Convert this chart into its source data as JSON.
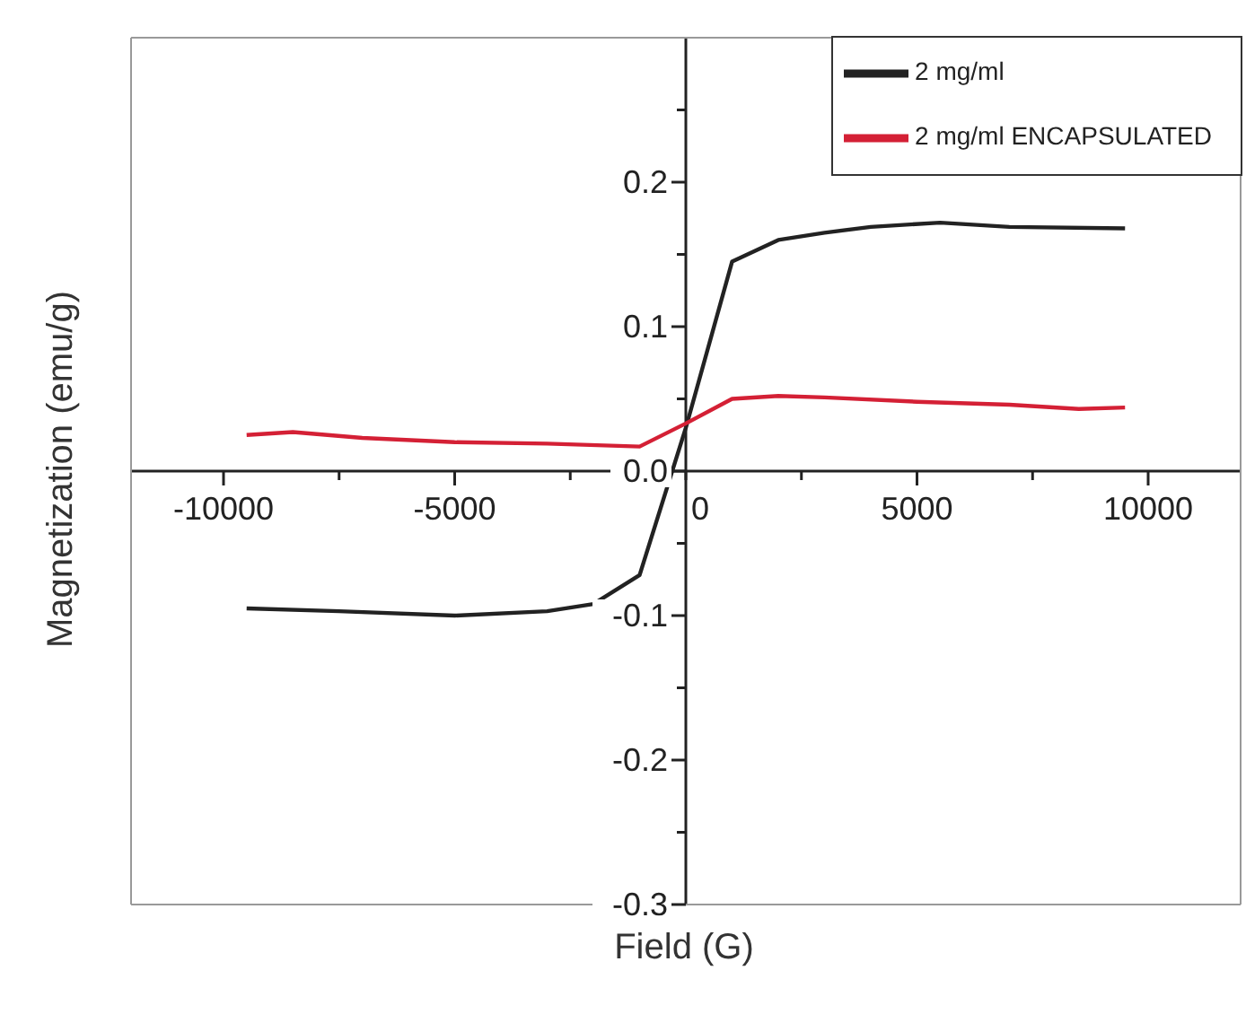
{
  "chart_data": {
    "type": "line",
    "xlabel": "Field (G)",
    "ylabel": "Magnetization (emu/g)",
    "xlim": [
      -12000,
      12000
    ],
    "ylim": [
      -0.3,
      0.3
    ],
    "xticks": [
      -10000,
      {
        "value": -7500,
        "label": null
      },
      -5000,
      {
        "value": -2500,
        "label": null
      },
      0,
      {
        "value": 2500,
        "label": null
      },
      5000,
      {
        "value": 7500,
        "label": null
      },
      10000
    ],
    "yticks": [
      -0.3,
      {
        "value": -0.25,
        "label": null
      },
      -0.2,
      {
        "value": -0.15,
        "label": null
      },
      -0.1,
      {
        "value": -0.05,
        "label": null
      },
      {
        "value": 0,
        "label": "0.0"
      },
      {
        "value": 0.05,
        "label": null
      },
      0.1,
      {
        "value": 0.15,
        "label": null
      },
      0.2,
      {
        "value": 0.25,
        "label": null
      }
    ],
    "legend": "top right",
    "grid": false,
    "marker": "none",
    "line_style": "solid",
    "series": [
      {
        "name": "2 mg/ml",
        "color": "#222222",
        "x": [
          -9500,
          -7500,
          -5000,
          -3000,
          -2000,
          -1000,
          0,
          1000,
          2000,
          3000,
          4000,
          5500,
          7000,
          9500
        ],
        "values": [
          -0.095,
          -0.097,
          -0.1,
          -0.097,
          -0.092,
          -0.072,
          0.03,
          0.145,
          0.16,
          0.165,
          0.169,
          0.172,
          0.169,
          0.168
        ]
      },
      {
        "name": "2 mg/ml ENCAPSULATED",
        "color": "#d42035",
        "x": [
          -9500,
          -8500,
          -7000,
          -5000,
          -3000,
          -1000,
          0,
          1000,
          2000,
          3000,
          5000,
          7000,
          8500,
          9500
        ],
        "values": [
          0.025,
          0.027,
          0.023,
          0.02,
          0.019,
          0.017,
          0.033,
          0.05,
          0.052,
          0.051,
          0.048,
          0.046,
          0.043,
          0.044
        ]
      }
    ]
  }
}
